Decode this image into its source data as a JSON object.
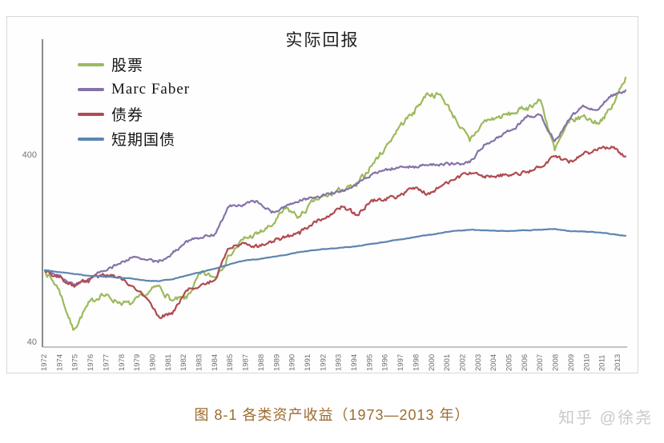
{
  "page": {
    "caption": "图 8-1 各类资产收益（1973—2013 年）",
    "watermark": "知乎 @徐尧"
  },
  "chart_data": {
    "type": "line",
    "title": "实际回报",
    "xlabel": "",
    "ylabel": "",
    "y_scale": "log",
    "ylim": [
      37,
      1150
    ],
    "grid": false,
    "legend_position": "top-left",
    "y_ticks": [
      {
        "label": "400",
        "value": 400
      },
      {
        "label": "40",
        "value": 40
      }
    ],
    "x_tick_labels": [
      "1972",
      "1974",
      "1975",
      "1976",
      "1977",
      "1978",
      "1979",
      "1980",
      "1981",
      "1982",
      "1983",
      "1984",
      "1985",
      "1987",
      "1988",
      "1989",
      "1990",
      "1991",
      "1992",
      "1993",
      "1994",
      "1995",
      "1996",
      "1997",
      "1998",
      "2000",
      "2001",
      "2002",
      "2003",
      "2004",
      "2005",
      "2006",
      "2007",
      "2008",
      "2009",
      "2010",
      "2011",
      "2013"
    ],
    "years": [
      1972,
      1973,
      1974,
      1975,
      1976,
      1977,
      1978,
      1979,
      1980,
      1981,
      1982,
      1983,
      1984,
      1985,
      1986,
      1987,
      1988,
      1989,
      1990,
      1991,
      1992,
      1993,
      1994,
      1995,
      1996,
      1997,
      1998,
      1999,
      2000,
      2001,
      2002,
      2003,
      2004,
      2005,
      2006,
      2007,
      2008,
      2009,
      2010,
      2011,
      2012,
      2013
    ],
    "series": [
      {
        "name": "股票",
        "color": "#9cba5d",
        "jitter": 0.03,
        "values": [
          96,
          76,
          46,
          62,
          72,
          66,
          63,
          70,
          79,
          66,
          68,
          92,
          88,
          115,
          140,
          150,
          165,
          205,
          185,
          225,
          240,
          260,
          270,
          345,
          430,
          560,
          670,
          850,
          820,
          620,
          470,
          600,
          630,
          660,
          710,
          780,
          420,
          590,
          640,
          590,
          700,
          1030
        ]
      },
      {
        "name": "Marc Faber",
        "color": "#8573a8",
        "jitter": 0.016,
        "values": [
          96,
          90,
          80,
          85,
          95,
          102,
          112,
          110,
          106,
          118,
          138,
          143,
          150,
          210,
          215,
          225,
          195,
          210,
          228,
          235,
          248,
          255,
          280,
          310,
          330,
          340,
          345,
          350,
          356,
          355,
          362,
          450,
          490,
          540,
          630,
          650,
          470,
          610,
          730,
          690,
          830,
          880
        ]
      },
      {
        "name": "债券",
        "color": "#b04b51",
        "jitter": 0.022,
        "values": [
          96,
          88,
          80,
          85,
          90,
          88,
          80,
          70,
          55,
          56,
          75,
          80,
          85,
          125,
          135,
          128,
          135,
          145,
          150,
          175,
          185,
          210,
          190,
          225,
          230,
          240,
          265,
          245,
          270,
          295,
          320,
          305,
          310,
          312,
          320,
          340,
          390,
          360,
          400,
          420,
          440,
          390
        ]
      },
      {
        "name": "短期国债",
        "color": "#5d85b0",
        "jitter": 0.003,
        "values": [
          96,
          94,
          92,
          90,
          89,
          88,
          87,
          85,
          84,
          86,
          90,
          94,
          98,
          103,
          108,
          110,
          113,
          116,
          120,
          123,
          125,
          127,
          129,
          133,
          136,
          140,
          144,
          148,
          152,
          156,
          158,
          157,
          156,
          156,
          157,
          158,
          160,
          156,
          155,
          153,
          150,
          147
        ]
      }
    ]
  }
}
